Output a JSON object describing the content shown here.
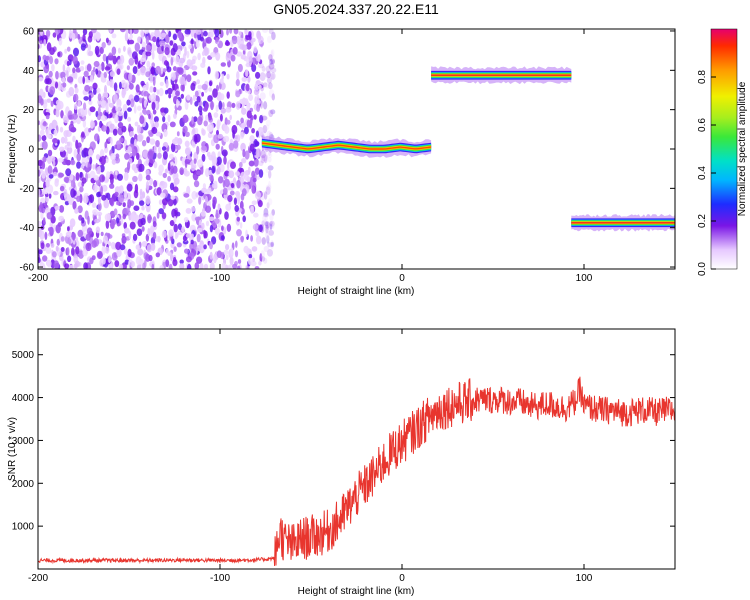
{
  "page": {
    "title": "GN05.2024.337.20.22.E11"
  },
  "chart_data": [
    {
      "type": "heatmap",
      "title": "GN05.2024.337.20.22.E11",
      "xlabel": "Height of straight line (km)",
      "ylabel": "Frequency (Hz)",
      "xlim": [
        -200,
        150
      ],
      "ylim": [
        -61,
        61
      ],
      "x_ticks": [
        -200,
        -100,
        0,
        100
      ],
      "y_ticks": [
        60,
        40,
        20,
        0,
        -20,
        -40,
        -60
      ],
      "colorbar": {
        "label": "Normalized spectral amplitude",
        "range": [
          0,
          1
        ],
        "ticks": [
          0.0,
          0.2,
          0.4,
          0.6,
          0.8
        ]
      },
      "noise_region": {
        "x_range": [
          -200,
          -75
        ],
        "f_range": [
          -61,
          61
        ],
        "amplitude": [
          0.05,
          0.2
        ]
      },
      "segments": [
        {
          "x_start": -77,
          "x_end": 16,
          "frequency": [
            3,
            2,
            1,
            0,
            1,
            2,
            1,
            0,
            0,
            1,
            0,
            1
          ],
          "amplitude": 0.9
        },
        {
          "x_start": 16,
          "x_end": 93,
          "frequency": [
            37.5
          ],
          "amplitude": 0.95
        },
        {
          "x_start": 93,
          "x_end": 150,
          "frequency": [
            -37.5
          ],
          "amplitude": 0.95
        }
      ]
    },
    {
      "type": "line",
      "xlabel": "Height of straight line (km)",
      "ylabel": "SNR (10 * v/v)",
      "xlim": [
        -200,
        150
      ],
      "ylim": [
        0,
        5600
      ],
      "x_ticks": [
        -200,
        -100,
        0,
        100
      ],
      "y_ticks": [
        1000,
        2000,
        3000,
        4000,
        5000
      ],
      "series": [
        {
          "color": "#e8352e",
          "x": [
            -200,
            -180,
            -160,
            -140,
            -120,
            -100,
            -80,
            -70,
            -67,
            -65,
            -60,
            -55,
            -50,
            -45,
            -40,
            -35,
            -30,
            -25,
            -20,
            -15,
            -10,
            -5,
            0,
            5,
            10,
            15,
            20,
            25,
            30,
            35,
            40,
            45,
            50,
            55,
            60,
            65,
            70,
            75,
            80,
            85,
            90,
            95,
            98,
            100,
            105,
            110,
            115,
            120,
            125,
            130,
            135,
            140,
            145,
            150
          ],
          "y": [
            200,
            200,
            200,
            200,
            210,
            200,
            210,
            250,
            900,
            650,
            550,
            700,
            750,
            800,
            900,
            1100,
            1400,
            1700,
            1950,
            2200,
            2500,
            2750,
            2950,
            3150,
            3350,
            3550,
            3700,
            3800,
            3850,
            3900,
            3950,
            3950,
            3950,
            3950,
            3900,
            3900,
            3800,
            3800,
            3850,
            3800,
            3750,
            3900,
            4200,
            3800,
            3750,
            3700,
            3700,
            3650,
            3650,
            3700,
            3700,
            3650,
            3700,
            3700
          ]
        }
      ]
    }
  ]
}
